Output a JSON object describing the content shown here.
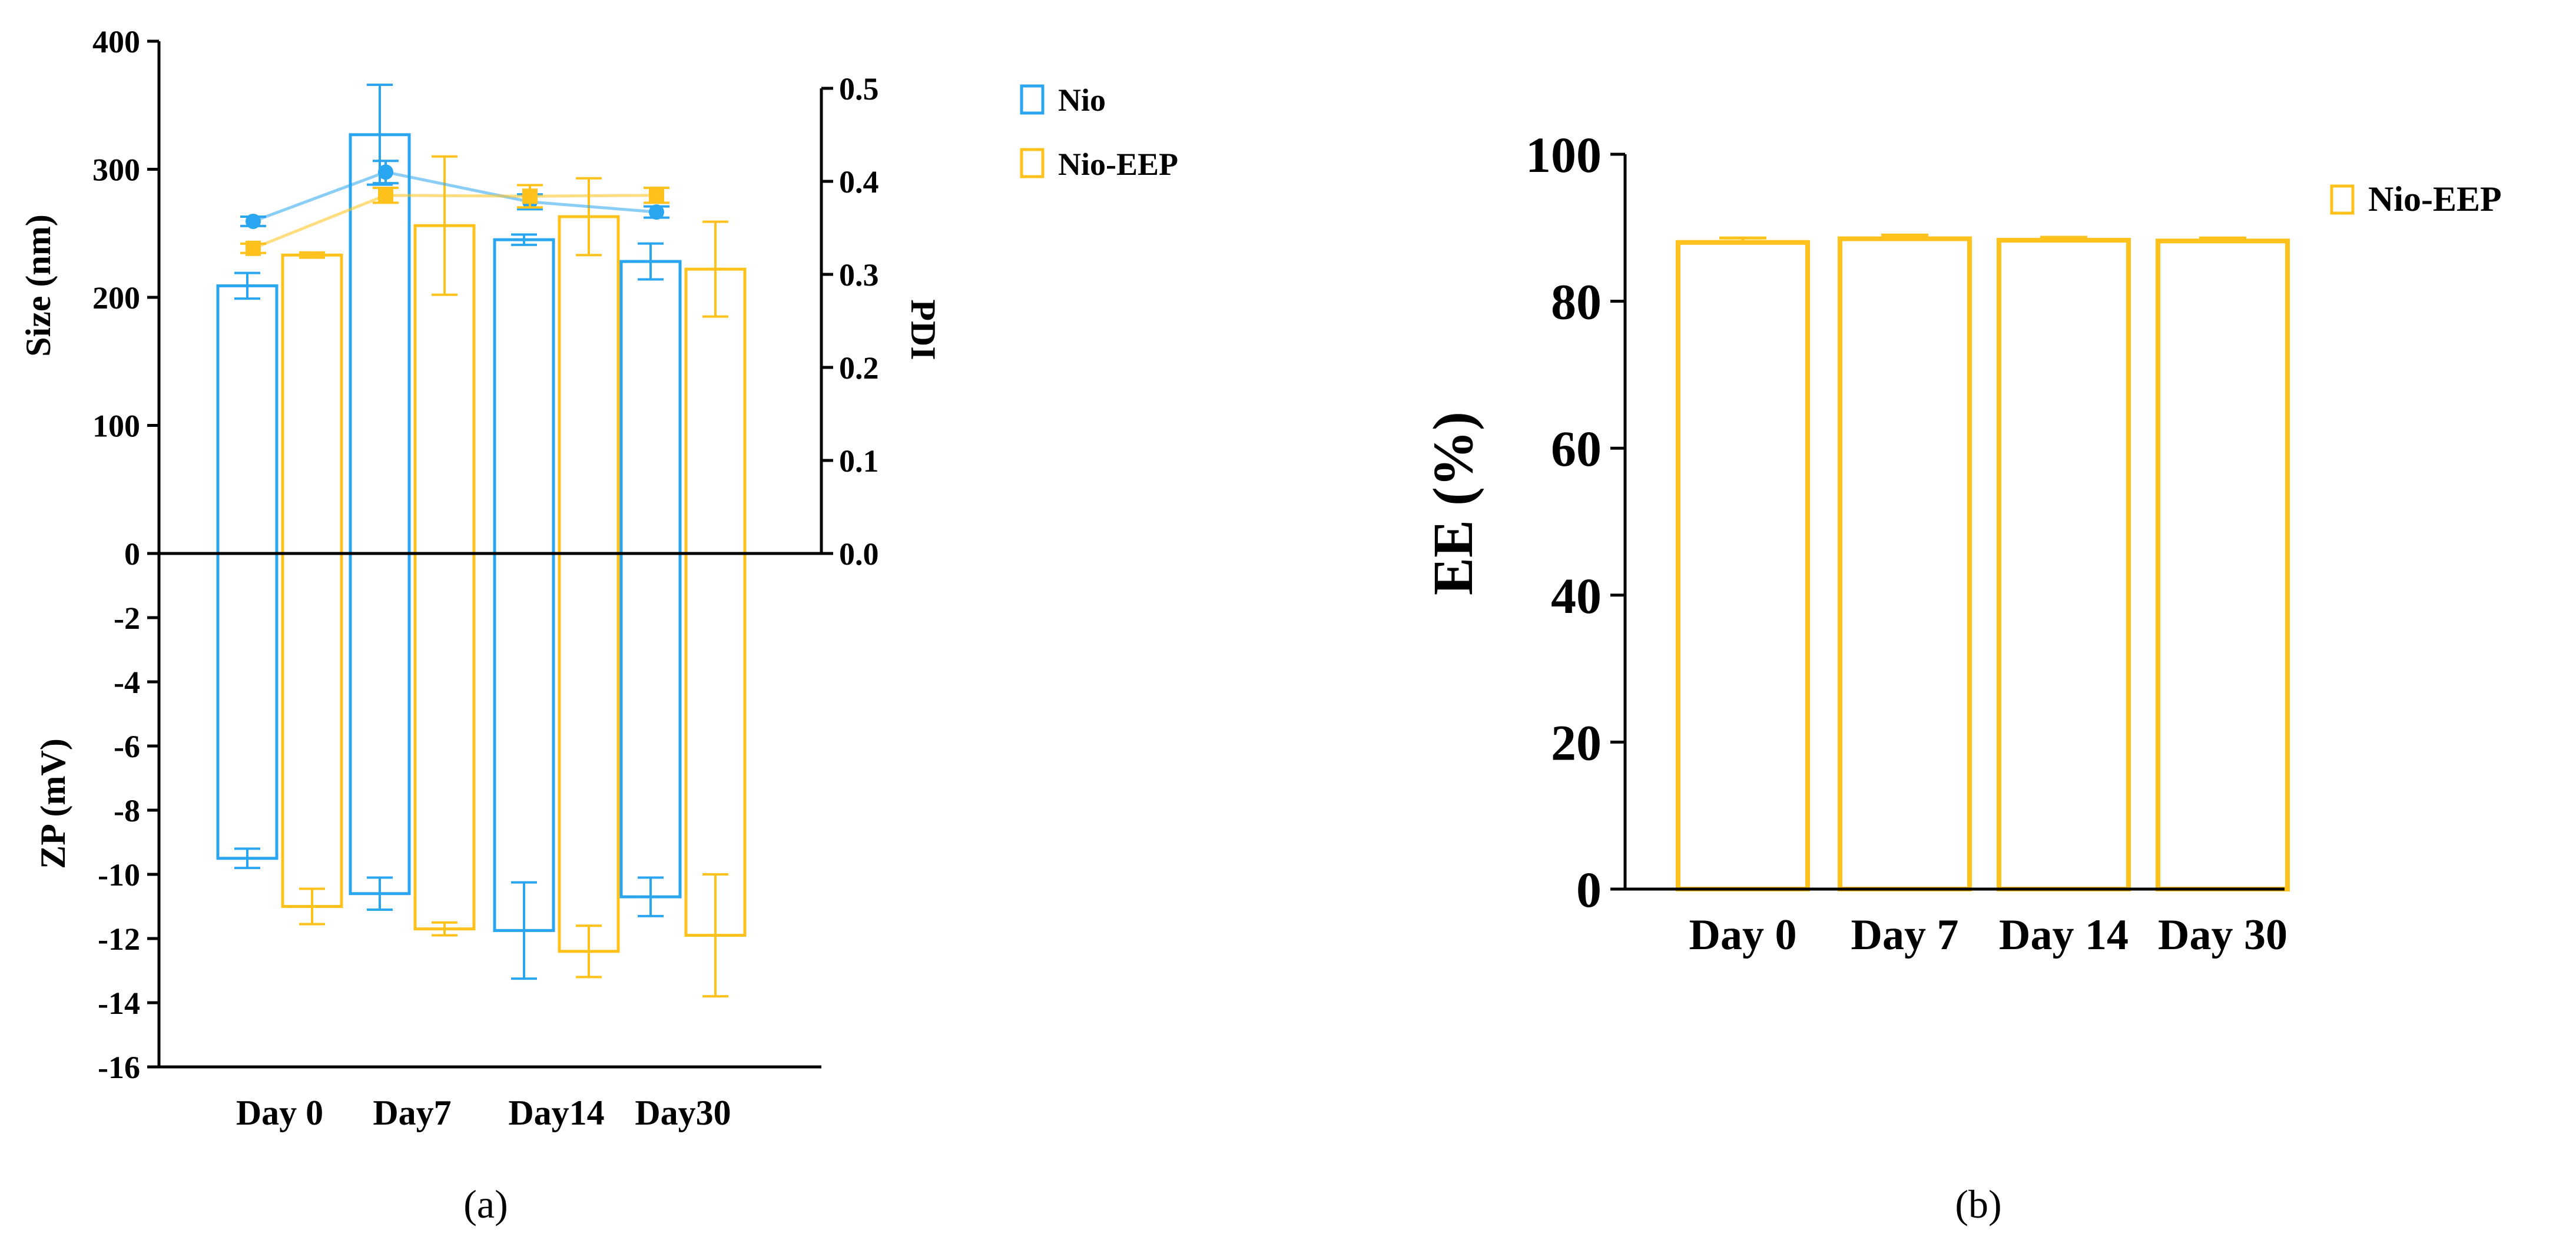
{
  "chart_data": [
    {
      "panel_label": "(a)",
      "type": "bar",
      "categories": [
        "Day 0",
        "Day7",
        "Day14",
        "Day30"
      ],
      "colors": {
        "Nio": "#2aa6f0",
        "Nio-EEP": "#ffc21c"
      },
      "legend": {
        "position": "top-right",
        "entries": [
          "Nio",
          "Nio-EEP"
        ]
      },
      "size_axis": {
        "label": "Size (nm)",
        "ylim": [
          0,
          400
        ],
        "ticks": [
          "400",
          "300",
          "200",
          "100",
          "0"
        ]
      },
      "pdi_axis": {
        "label": "PDI",
        "ylim": [
          0,
          0.5
        ],
        "ticks": [
          "0.5",
          "0.4",
          "0.3",
          "0.2",
          "0.1",
          "0.0"
        ]
      },
      "zp_axis": {
        "label": "ZP (mV)",
        "ylim": [
          -16,
          0
        ],
        "ticks": [
          "-2",
          "-4",
          "-6",
          "-8",
          "-10",
          "-12",
          "-14",
          "-16"
        ]
      },
      "size_series": [
        {
          "name": "Nio",
          "values": [
            209,
            327,
            245,
            228
          ],
          "errors": [
            10,
            39,
            4,
            14
          ]
        },
        {
          "name": "Nio-EEP",
          "values": [
            233,
            256,
            263,
            222
          ],
          "errors": [
            2,
            54,
            30,
            37
          ]
        }
      ],
      "zp_series": [
        {
          "name": "Nio",
          "values": [
            -9.5,
            -10.6,
            -11.75,
            -10.7
          ],
          "errors": [
            0.3,
            0.5,
            1.5,
            0.6
          ]
        },
        {
          "name": "Nio-EEP",
          "values": [
            -11.0,
            -11.7,
            -12.4,
            -11.9
          ],
          "errors": [
            0.55,
            0.2,
            0.8,
            1.9
          ]
        }
      ],
      "pdi_series": [
        {
          "name": "Nio",
          "values": [
            0.357,
            0.41,
            0.378,
            0.367
          ],
          "errors": [
            0.005,
            0.012,
            0.008,
            0.006
          ]
        },
        {
          "name": "Nio-EEP",
          "values": [
            0.328,
            0.385,
            0.384,
            0.385
          ],
          "errors": [
            0.005,
            0.008,
            0.012,
            0.008
          ]
        }
      ]
    },
    {
      "panel_label": "(b)",
      "type": "bar",
      "categories": [
        "Day 0",
        "Day 7",
        "Day 14",
        "Day 30"
      ],
      "series": [
        {
          "name": "Nio-EEP",
          "values": [
            88.0,
            88.5,
            88.3,
            88.2
          ],
          "errors": [
            0.6,
            0.5,
            0.4,
            0.4
          ],
          "color": "#ffc21c"
        }
      ],
      "ylabel": "EE (%)",
      "ylim": [
        0,
        100
      ],
      "ticks": [
        "100",
        "80",
        "60",
        "40",
        "20",
        "0"
      ],
      "legend": {
        "position": "top-right",
        "entries": [
          "Nio-EEP"
        ]
      }
    }
  ]
}
